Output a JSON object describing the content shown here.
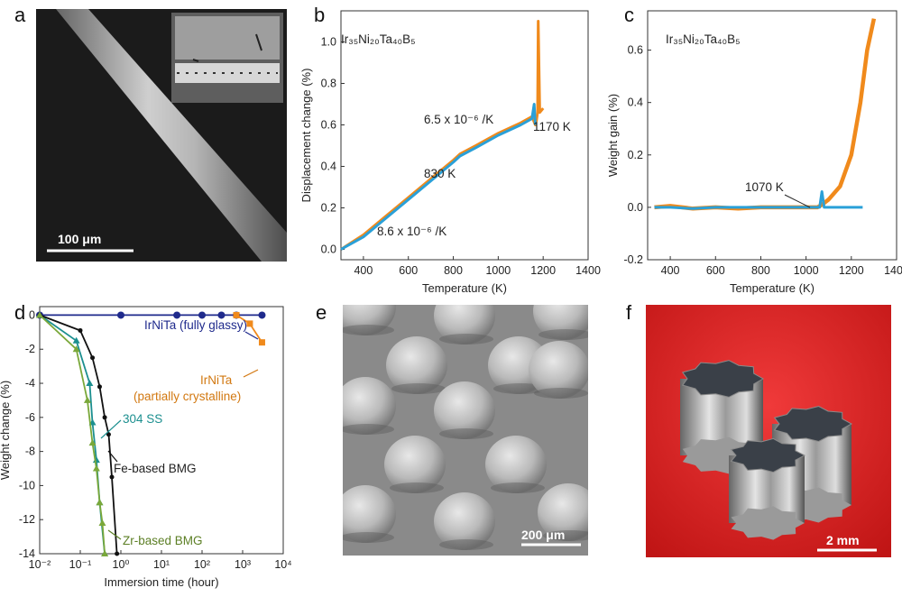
{
  "panels": {
    "a": {
      "letter": "a",
      "scale_bar": "100 μm"
    },
    "b": {
      "letter": "b",
      "alloy": "Ir₃₅Ni₂₀Ta₄₀B₅",
      "annotations": [
        "6.5 x 10⁻⁶ /K",
        "1170 K",
        "830 K",
        "8.6 x 10⁻⁶ /K"
      ]
    },
    "c": {
      "letter": "c",
      "alloy": "Ir₃₅Ni₂₀Ta₄₀B₅",
      "annotations": [
        "1070 K"
      ]
    },
    "d": {
      "letter": "d",
      "annotations": [
        "IrNiTa (fully glassy)",
        "IrNiTa",
        "(partially crystalline)",
        "304 SS",
        "Fe-based BMG",
        "Zr-based BMG"
      ]
    },
    "e": {
      "letter": "e",
      "scale_bar": "200 μm"
    },
    "f": {
      "letter": "f",
      "scale_bar": "2 mm"
    }
  },
  "chart_data": [
    {
      "panel": "b",
      "type": "line",
      "xlabel": "Temperature (K)",
      "ylabel": "Displacement change (%)",
      "xlim": [
        300,
        1400
      ],
      "ylim": [
        -0.05,
        1.15
      ],
      "xticks": [
        "400",
        "600",
        "800",
        "1000",
        "1200",
        "1400"
      ],
      "yticks": [
        "0.0",
        "0.2",
        "0.4",
        "0.6",
        "0.8",
        "1.0"
      ],
      "series": [
        {
          "color": "#f08a1c",
          "x": [
            300,
            400,
            500,
            600,
            700,
            800,
            830,
            900,
            1000,
            1100,
            1150,
            1165,
            1170,
            1175,
            1178,
            1185,
            1200
          ],
          "y": [
            0.0,
            0.07,
            0.16,
            0.25,
            0.34,
            0.43,
            0.46,
            0.5,
            0.56,
            0.61,
            0.64,
            0.6,
            0.62,
            0.66,
            1.1,
            0.66,
            0.68
          ]
        },
        {
          "color": "#2aa0d8",
          "x": [
            300,
            400,
            500,
            600,
            700,
            800,
            830,
            900,
            1000,
            1100,
            1150,
            1160,
            1165
          ],
          "y": [
            0.0,
            0.06,
            0.15,
            0.24,
            0.33,
            0.42,
            0.45,
            0.49,
            0.55,
            0.6,
            0.63,
            0.7,
            0.6
          ]
        }
      ]
    },
    {
      "panel": "c",
      "type": "line",
      "xlabel": "Temperature (K)",
      "ylabel": "Weight gain (%)",
      "xlim": [
        300,
        1400
      ],
      "ylim": [
        -0.2,
        0.75
      ],
      "xticks": [
        "400",
        "600",
        "800",
        "1000",
        "1200",
        "1400"
      ],
      "yticks": [
        "-0.2",
        "0.0",
        "0.2",
        "0.4",
        "0.6"
      ],
      "series": [
        {
          "color": "#f08a1c",
          "x": [
            330,
            400,
            500,
            600,
            700,
            800,
            900,
            1000,
            1050,
            1070,
            1100,
            1150,
            1200,
            1240,
            1270,
            1300
          ],
          "y": [
            0.0,
            0.005,
            -0.005,
            0.0,
            -0.005,
            0.0,
            0.0,
            0.0,
            0.0,
            0.01,
            0.03,
            0.08,
            0.2,
            0.4,
            0.6,
            0.72
          ]
        },
        {
          "color": "#2aa0d8",
          "x": [
            330,
            400,
            500,
            600,
            700,
            800,
            900,
            1000,
            1060,
            1070,
            1080,
            1100,
            1150,
            1200,
            1250
          ],
          "y": [
            0.0,
            0.0,
            -0.005,
            0.0,
            0.0,
            0.0,
            0.0,
            0.0,
            0.0,
            0.06,
            0.0,
            0.0,
            0.0,
            0.0,
            0.0
          ]
        }
      ]
    },
    {
      "panel": "d",
      "type": "line",
      "xscale": "log",
      "xlabel": "Immersion time (hour)",
      "ylabel": "Weight change (%)",
      "xlim": [
        0.01,
        10000
      ],
      "ylim": [
        -14,
        0.5
      ],
      "xticks": [
        "10⁻²",
        "10⁻¹",
        "10⁰",
        "10¹",
        "10²",
        "10³",
        "10⁴"
      ],
      "yticks": [
        "0",
        "-2",
        "-4",
        "-6",
        "-8",
        "-10",
        "-12",
        "-14"
      ],
      "series": [
        {
          "name": "IrNiTa (fully glassy)",
          "color": "#1f2a8c",
          "marker": "circle",
          "x": [
            0.01,
            1,
            24,
            100,
            300,
            700,
            3000
          ],
          "y": [
            0,
            0,
            0,
            0,
            0,
            0,
            0
          ]
        },
        {
          "name": "IrNiTa (partially crystalline)",
          "color": "#f08a1c",
          "marker": "square",
          "x": [
            700,
            1500,
            3000
          ],
          "y": [
            0,
            -0.5,
            -1.6
          ]
        },
        {
          "name": "304 SS",
          "color": "#1c8f8f",
          "marker": "triangle",
          "x": [
            0.01,
            0.08,
            0.17,
            0.2,
            0.25,
            0.3,
            0.4
          ],
          "y": [
            0,
            -1.5,
            -4.0,
            -6.3,
            -8.5,
            -11,
            -14
          ]
        },
        {
          "name": "Fe-based BMG",
          "color": "#111111",
          "marker": "circle",
          "x": [
            0.01,
            0.1,
            0.2,
            0.3,
            0.4,
            0.5,
            0.6,
            0.8
          ],
          "y": [
            0,
            -0.9,
            -2.5,
            -4.2,
            -6.0,
            -7.0,
            -9.5,
            -14
          ]
        },
        {
          "name": "Zr-based BMG",
          "color": "#7aa83a",
          "marker": "triangle",
          "x": [
            0.01,
            0.08,
            0.15,
            0.2,
            0.25,
            0.3,
            0.35,
            0.4
          ],
          "y": [
            0,
            -2,
            -5,
            -7.5,
            -9,
            -11,
            -12.2,
            -14
          ]
        }
      ]
    }
  ]
}
